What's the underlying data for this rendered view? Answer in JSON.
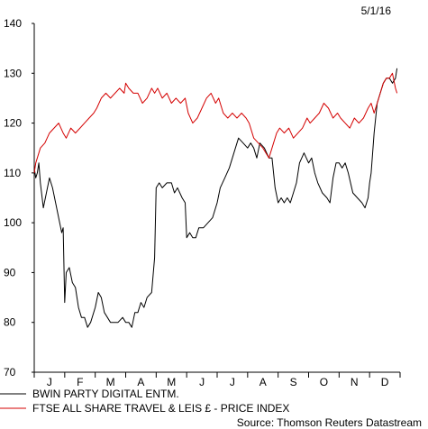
{
  "chart_data": {
    "type": "line",
    "date_label": "5/1/16",
    "source": "Source: Thomson Reuters Datastream",
    "ylim": [
      70,
      140
    ],
    "yticks": [
      70,
      80,
      90,
      100,
      110,
      120,
      130,
      140
    ],
    "months": [
      "J",
      "F",
      "M",
      "A",
      "M",
      "J",
      "J",
      "A",
      "S",
      "O",
      "N",
      "D"
    ],
    "grid": false,
    "legend_position": "bottom-left",
    "series": [
      {
        "name": "BWIN PARTY DIGITAL ENTM.",
        "color": "#000000",
        "points": [
          [
            0.0,
            111
          ],
          [
            0.05,
            109
          ],
          [
            0.1,
            110
          ],
          [
            0.15,
            112
          ],
          [
            0.2,
            108
          ],
          [
            0.3,
            103
          ],
          [
            0.4,
            106
          ],
          [
            0.5,
            109
          ],
          [
            0.6,
            107
          ],
          [
            0.7,
            104
          ],
          [
            0.8,
            101
          ],
          [
            0.9,
            98
          ],
          [
            0.95,
            99
          ],
          [
            1.0,
            84
          ],
          [
            1.05,
            90
          ],
          [
            1.15,
            91
          ],
          [
            1.25,
            88
          ],
          [
            1.35,
            87
          ],
          [
            1.45,
            83
          ],
          [
            1.55,
            81
          ],
          [
            1.65,
            81
          ],
          [
            1.75,
            79
          ],
          [
            1.85,
            80
          ],
          [
            2.0,
            83
          ],
          [
            2.1,
            86
          ],
          [
            2.2,
            85
          ],
          [
            2.3,
            82
          ],
          [
            2.4,
            81
          ],
          [
            2.5,
            80
          ],
          [
            2.6,
            80
          ],
          [
            2.75,
            80
          ],
          [
            2.9,
            81
          ],
          [
            3.0,
            80
          ],
          [
            3.1,
            80
          ],
          [
            3.2,
            79
          ],
          [
            3.3,
            82
          ],
          [
            3.4,
            82
          ],
          [
            3.5,
            84
          ],
          [
            3.6,
            83
          ],
          [
            3.7,
            85
          ],
          [
            3.85,
            86
          ],
          [
            3.95,
            93
          ],
          [
            4.0,
            107
          ],
          [
            4.1,
            108
          ],
          [
            4.2,
            107
          ],
          [
            4.35,
            108
          ],
          [
            4.5,
            108
          ],
          [
            4.6,
            106
          ],
          [
            4.7,
            107
          ],
          [
            4.85,
            105
          ],
          [
            4.95,
            104
          ],
          [
            5.0,
            97
          ],
          [
            5.1,
            98
          ],
          [
            5.2,
            97
          ],
          [
            5.3,
            97
          ],
          [
            5.4,
            99
          ],
          [
            5.55,
            99
          ],
          [
            5.7,
            100
          ],
          [
            5.85,
            101
          ],
          [
            6.0,
            104
          ],
          [
            6.1,
            107
          ],
          [
            6.25,
            109
          ],
          [
            6.4,
            111
          ],
          [
            6.55,
            114
          ],
          [
            6.7,
            117
          ],
          [
            6.85,
            116
          ],
          [
            7.0,
            115
          ],
          [
            7.1,
            116
          ],
          [
            7.2,
            115
          ],
          [
            7.3,
            113
          ],
          [
            7.4,
            116
          ],
          [
            7.55,
            115
          ],
          [
            7.7,
            113
          ],
          [
            7.8,
            113
          ],
          [
            7.9,
            107
          ],
          [
            8.0,
            104
          ],
          [
            8.1,
            105
          ],
          [
            8.2,
            104
          ],
          [
            8.3,
            105
          ],
          [
            8.4,
            104
          ],
          [
            8.5,
            106
          ],
          [
            8.6,
            108
          ],
          [
            8.7,
            112
          ],
          [
            8.85,
            114
          ],
          [
            9.0,
            112
          ],
          [
            9.1,
            113
          ],
          [
            9.2,
            110
          ],
          [
            9.3,
            108
          ],
          [
            9.45,
            106
          ],
          [
            9.6,
            105
          ],
          [
            9.7,
            104
          ],
          [
            9.8,
            109
          ],
          [
            9.9,
            112
          ],
          [
            10.0,
            112
          ],
          [
            10.1,
            111
          ],
          [
            10.2,
            112
          ],
          [
            10.3,
            110
          ],
          [
            10.45,
            106
          ],
          [
            10.6,
            105
          ],
          [
            10.75,
            104
          ],
          [
            10.85,
            103
          ],
          [
            10.95,
            105
          ],
          [
            11.0,
            108
          ],
          [
            11.05,
            110
          ],
          [
            11.15,
            118
          ],
          [
            11.25,
            124
          ],
          [
            11.35,
            126
          ],
          [
            11.45,
            128
          ],
          [
            11.55,
            129
          ],
          [
            11.65,
            129
          ],
          [
            11.75,
            128
          ],
          [
            11.85,
            129
          ],
          [
            11.9,
            131
          ]
        ]
      },
      {
        "name": "FTSE ALL SHARE TRAVEL & LEIS £ - PRICE INDEX",
        "color": "#d40000",
        "points": [
          [
            0.0,
            110
          ],
          [
            0.05,
            112
          ],
          [
            0.1,
            113
          ],
          [
            0.2,
            115
          ],
          [
            0.35,
            116
          ],
          [
            0.5,
            118
          ],
          [
            0.65,
            119
          ],
          [
            0.8,
            120
          ],
          [
            0.95,
            118
          ],
          [
            1.05,
            117
          ],
          [
            1.2,
            119
          ],
          [
            1.35,
            118
          ],
          [
            1.5,
            119
          ],
          [
            1.65,
            120
          ],
          [
            1.8,
            121
          ],
          [
            1.95,
            122
          ],
          [
            2.05,
            123
          ],
          [
            2.2,
            125
          ],
          [
            2.35,
            126
          ],
          [
            2.5,
            125
          ],
          [
            2.65,
            126
          ],
          [
            2.8,
            127
          ],
          [
            2.95,
            126
          ],
          [
            3.0,
            128
          ],
          [
            3.1,
            127
          ],
          [
            3.25,
            126
          ],
          [
            3.4,
            126
          ],
          [
            3.55,
            124
          ],
          [
            3.7,
            125
          ],
          [
            3.85,
            127
          ],
          [
            3.95,
            126
          ],
          [
            4.05,
            127
          ],
          [
            4.2,
            125
          ],
          [
            4.35,
            126
          ],
          [
            4.5,
            124
          ],
          [
            4.65,
            125
          ],
          [
            4.8,
            124
          ],
          [
            4.95,
            125
          ],
          [
            5.05,
            122
          ],
          [
            5.2,
            120
          ],
          [
            5.35,
            121
          ],
          [
            5.5,
            123
          ],
          [
            5.65,
            125
          ],
          [
            5.8,
            126
          ],
          [
            5.95,
            124
          ],
          [
            6.05,
            125
          ],
          [
            6.2,
            122
          ],
          [
            6.35,
            121
          ],
          [
            6.5,
            122
          ],
          [
            6.65,
            121
          ],
          [
            6.8,
            122
          ],
          [
            6.95,
            121
          ],
          [
            7.05,
            120
          ],
          [
            7.2,
            117
          ],
          [
            7.35,
            116
          ],
          [
            7.5,
            115
          ],
          [
            7.6,
            114
          ],
          [
            7.7,
            113
          ],
          [
            7.8,
            115
          ],
          [
            7.95,
            118
          ],
          [
            8.05,
            119
          ],
          [
            8.2,
            118
          ],
          [
            8.35,
            119
          ],
          [
            8.5,
            117
          ],
          [
            8.65,
            118
          ],
          [
            8.8,
            119
          ],
          [
            8.95,
            121
          ],
          [
            9.05,
            120
          ],
          [
            9.2,
            121
          ],
          [
            9.35,
            122
          ],
          [
            9.5,
            124
          ],
          [
            9.65,
            123
          ],
          [
            9.8,
            121
          ],
          [
            9.95,
            122
          ],
          [
            10.05,
            121
          ],
          [
            10.2,
            120
          ],
          [
            10.35,
            119
          ],
          [
            10.5,
            121
          ],
          [
            10.65,
            120
          ],
          [
            10.8,
            121
          ],
          [
            10.95,
            123
          ],
          [
            11.05,
            124
          ],
          [
            11.15,
            122
          ],
          [
            11.25,
            124
          ],
          [
            11.35,
            126
          ],
          [
            11.45,
            128
          ],
          [
            11.55,
            129
          ],
          [
            11.65,
            129
          ],
          [
            11.75,
            130
          ],
          [
            11.85,
            127
          ],
          [
            11.9,
            126
          ]
        ]
      }
    ]
  }
}
